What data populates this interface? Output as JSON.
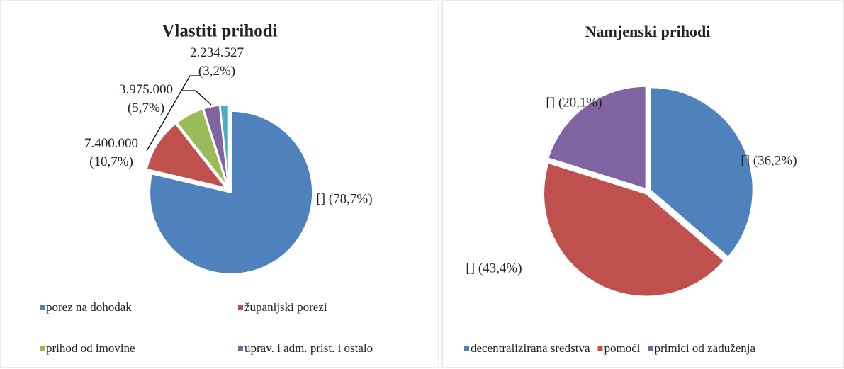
{
  "chart_data": [
    {
      "type": "pie",
      "title": "Vlastiti prihodi",
      "categories": [
        "porez na dohodak",
        "županijski porezi",
        "prihod od imovine",
        "uprav. i adm. prist. i ostalo",
        null
      ],
      "values": [
        78.7,
        10.7,
        5.7,
        3.2,
        1.7
      ],
      "value_labels": [
        "[] (78,7%)",
        "7.400.000\n(10,7%)",
        "3.975.000\n(5,7%)",
        "2.234.527\n(3,2%)",
        null
      ],
      "colors": [
        "#4f81bd",
        "#c0504d",
        "#9bbb59",
        "#8064a2",
        "#4bacc6"
      ],
      "legend": "bottom"
    },
    {
      "type": "pie",
      "title": "Namjenski prihodi",
      "categories": [
        "decentralizirana sredstva",
        "pomoći",
        "primici od zaduženja"
      ],
      "values": [
        36.2,
        43.4,
        20.1
      ],
      "value_labels": [
        "[] (36,2%)",
        "[] (43,4%)",
        "[] (20,1%)"
      ],
      "colors": [
        "#4f81bd",
        "#c0504d",
        "#8064a2"
      ],
      "legend": "bottom"
    }
  ]
}
